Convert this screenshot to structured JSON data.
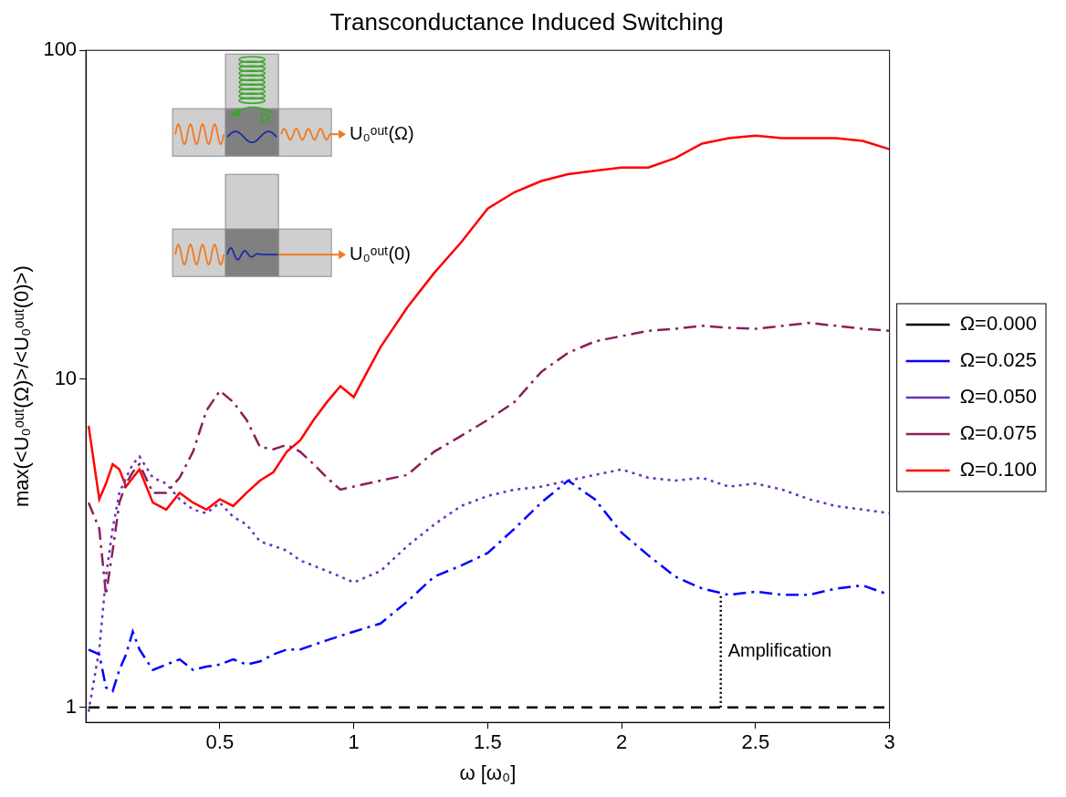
{
  "chart_data": {
    "type": "line",
    "title": "Transconductance Induced Switching",
    "x_label": "ω [ω₀]",
    "y_label": "max(<U₀ᵒᵘᵗ(Ω)>/<U₀ᵒᵘᵗ(0)>)",
    "x": [
      0.01,
      0.05,
      0.075,
      0.1,
      0.125,
      0.15,
      0.175,
      0.2,
      0.25,
      0.3,
      0.35,
      0.4,
      0.45,
      0.5,
      0.55,
      0.6,
      0.65,
      0.7,
      0.75,
      0.8,
      0.85,
      0.9,
      0.95,
      1.0,
      1.05,
      1.1,
      1.2,
      1.3,
      1.4,
      1.5,
      1.6,
      1.7,
      1.8,
      1.9,
      2.0,
      2.1,
      2.2,
      2.3,
      2.4,
      2.5,
      2.6,
      2.7,
      2.8,
      2.9,
      3.0
    ],
    "series": [
      {
        "name": "Ω=0.000",
        "color": "#000000",
        "line_style": "dashed",
        "values": [
          1,
          1,
          1,
          1,
          1,
          1,
          1,
          1,
          1,
          1,
          1,
          1,
          1,
          1,
          1,
          1,
          1,
          1,
          1,
          1,
          1,
          1,
          1,
          1,
          1,
          1,
          1,
          1,
          1,
          1,
          1,
          1,
          1,
          1,
          1,
          1,
          1,
          1,
          1,
          1,
          1,
          1,
          1,
          1,
          1
        ]
      },
      {
        "name": "Ω=0.025",
        "color": "#0000ff",
        "line_style": "dashdot",
        "values": [
          1.5,
          1.45,
          1.15,
          1.12,
          1.3,
          1.45,
          1.7,
          1.5,
          1.3,
          1.35,
          1.4,
          1.3,
          1.33,
          1.35,
          1.4,
          1.35,
          1.38,
          1.45,
          1.5,
          1.5,
          1.55,
          1.6,
          1.65,
          1.7,
          1.75,
          1.8,
          2.1,
          2.5,
          2.7,
          2.95,
          3.5,
          4.2,
          4.9,
          4.3,
          3.4,
          2.9,
          2.5,
          2.3,
          2.2,
          2.25,
          2.2,
          2.2,
          2.3,
          2.35,
          2.2
        ]
      },
      {
        "name": "Ω=0.050",
        "color": "#6b2fbf",
        "line_style": "dotted",
        "values": [
          0.97,
          1.5,
          2.5,
          3.5,
          4.5,
          5.0,
          5.5,
          5.8,
          5.0,
          4.8,
          4.3,
          4.0,
          3.9,
          4.2,
          3.8,
          3.6,
          3.2,
          3.1,
          3.0,
          2.8,
          2.7,
          2.6,
          2.5,
          2.4,
          2.5,
          2.6,
          3.1,
          3.6,
          4.1,
          4.4,
          4.6,
          4.7,
          4.9,
          5.1,
          5.3,
          5.0,
          4.9,
          5.0,
          4.7,
          4.8,
          4.6,
          4.3,
          4.1,
          4.0,
          3.9
        ]
      },
      {
        "name": "Ω=0.075",
        "color": "#8b1f5c",
        "line_style": "dashdot",
        "values": [
          4.2,
          3.5,
          2.2,
          3.0,
          4.2,
          4.8,
          5.2,
          5.5,
          4.5,
          4.5,
          5.0,
          6.0,
          8.0,
          9.2,
          8.5,
          7.5,
          6.2,
          6.1,
          6.3,
          6.0,
          5.5,
          5.0,
          4.6,
          4.7,
          4.8,
          4.9,
          5.1,
          6.0,
          6.7,
          7.5,
          8.5,
          10.5,
          12.0,
          13.0,
          13.5,
          14.0,
          14.2,
          14.5,
          14.3,
          14.2,
          14.5,
          14.8,
          14.5,
          14.2,
          14.0
        ]
      },
      {
        "name": "Ω=0.100",
        "color": "#ff0000",
        "line_style": "solid",
        "values": [
          7.2,
          4.3,
          4.8,
          5.5,
          5.3,
          4.7,
          5.0,
          5.3,
          4.2,
          4.0,
          4.5,
          4.2,
          4.0,
          4.3,
          4.1,
          4.5,
          4.9,
          5.2,
          6.0,
          6.5,
          7.5,
          8.5,
          9.5,
          8.8,
          10.5,
          12.5,
          16.5,
          21.0,
          26.0,
          33.0,
          37.0,
          40.0,
          42.0,
          43.0,
          44.0,
          44.0,
          47.0,
          52.0,
          54.0,
          55.0,
          54.0,
          54.0,
          54.0,
          53.0,
          50.0
        ]
      }
    ],
    "xlim": [
      0,
      3
    ],
    "xticks": [
      0.5,
      1,
      1.5,
      2,
      2.5,
      3
    ],
    "ylim": [
      0.9,
      100
    ],
    "yticks": [
      1,
      10,
      100
    ],
    "log": "y",
    "grid": false,
    "legend": "right",
    "annotations": [
      {
        "text": "Amplification",
        "x": 2.37,
        "y": [
          1,
          2.2
        ]
      }
    ],
    "insets": [
      {
        "drive": "Ω",
        "output": "U₀ᵒᵘᵗ(Ω)"
      },
      {
        "output": "U₀ᵒᵘᵗ(0)"
      }
    ]
  }
}
